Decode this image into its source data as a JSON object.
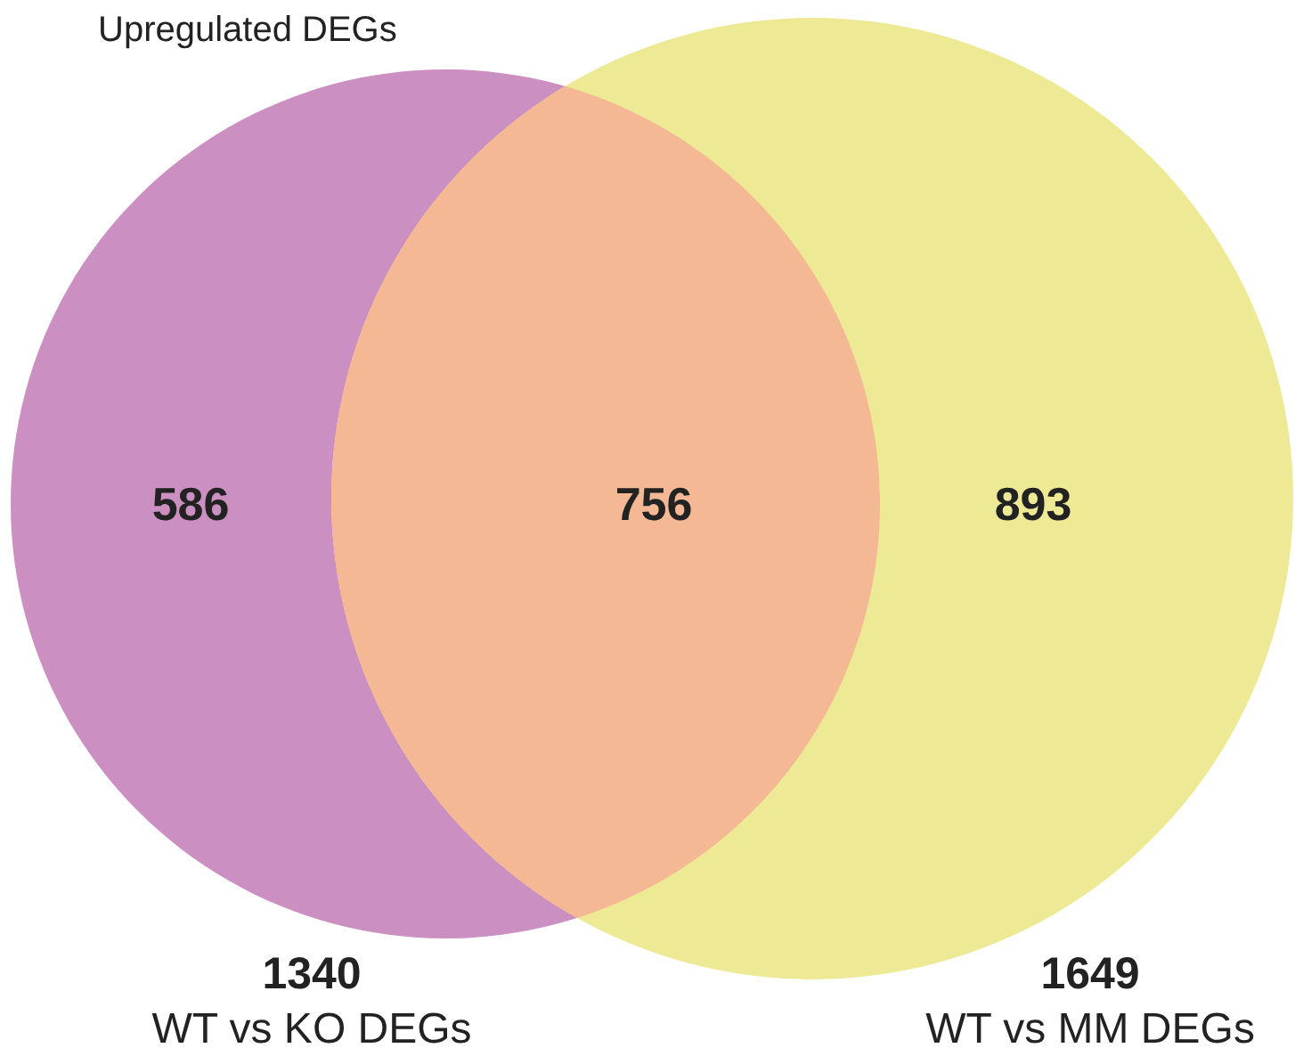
{
  "chart_data": {
    "type": "other",
    "title": "Upregulated DEGs",
    "categories": [
      null,
      null,
      null
    ],
    "values": [
      586,
      756,
      893
    ],
    "colors": [
      "#cc8fc1",
      "#f4b894",
      "#ede994"
    ],
    "data_labels": true,
    "annotations": [
      "1340",
      "WT vs KO DEGs",
      "1649",
      "WT vs MM DEGs"
    ]
  }
}
